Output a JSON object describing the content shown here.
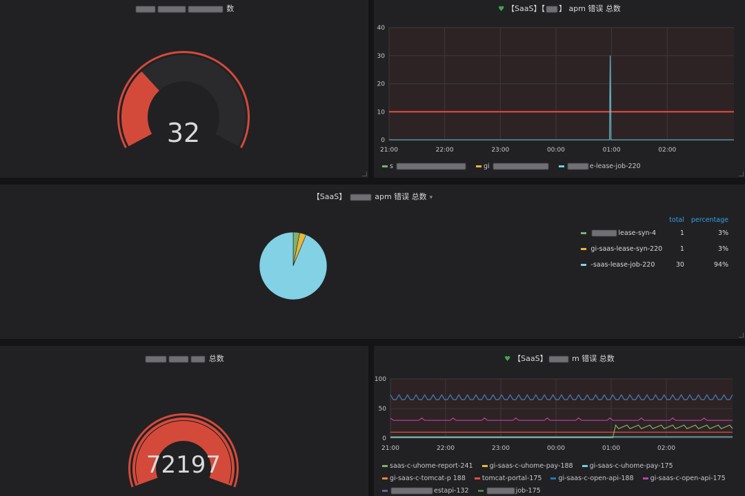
{
  "colors": {
    "gauge_red": "#d44a3a",
    "gauge_track": "#2a2a2d",
    "grid": "#3a3a3e",
    "threshold": "#e24d42",
    "series_cyan": "#6ed0e0",
    "series_green": "#7eb26d",
    "series_yellow": "#eab839",
    "series_blue": "#447ebc",
    "series_purple": "#ba43a9",
    "series_orange": "#ef843c",
    "pie_blue": "#82d1e5"
  },
  "panels": {
    "gauge_top": {
      "title_suffix": "数",
      "value": "32"
    },
    "graph_top": {
      "title_prefix": "【SaaS】【",
      "title_suffix": "apm 错误 总数",
      "legend": [
        {
          "name": "s",
          "color": "#7eb26d"
        },
        {
          "name": "gi",
          "color": "#eab839"
        },
        {
          "name": "e-lease-job-220",
          "color": "#6ed0e0"
        }
      ]
    },
    "pie": {
      "title_prefix": "【SaaS】",
      "title_suffix": "apm 错误 总数",
      "header_total": "total",
      "header_percentage": "percentage",
      "rows": [
        {
          "name": "lease-syn-4",
          "total": "1",
          "percentage": "3%",
          "color": "#7eb26d"
        },
        {
          "name": "gi-saas-lease-syn-220",
          "total": "1",
          "percentage": "3%",
          "color": "#eab839"
        },
        {
          "name": "-saas-lease-job-220",
          "total": "30",
          "percentage": "94%",
          "color": "#82d1e5"
        }
      ]
    },
    "gauge_bottom": {
      "title_suffix": "总数",
      "value": "72197"
    },
    "graph_bottom": {
      "title_prefix": "【SaaS】",
      "title_suffix": "m 错误 总数",
      "legend": [
        {
          "name": "saas-c-uhome-report-241",
          "color": "#7eb26d"
        },
        {
          "name": "gi-saas-c-uhome-pay-188",
          "color": "#eab839"
        },
        {
          "name": "gi-saas-c-uhome-pay-175",
          "color": "#6ed0e0"
        },
        {
          "name": "gi-saas-c-tomcat-p 188",
          "color": "#ef843c"
        },
        {
          "name": "tomcat-portal-175",
          "color": "#e24d42"
        },
        {
          "name": "gi-saas-c-open-api-188",
          "color": "#1f78c1"
        },
        {
          "name": "gi-saas-c-open-api-175",
          "color": "#ba43a9"
        },
        {
          "name": "estapi-132",
          "color": "#705da0"
        },
        {
          "name": "job-175",
          "color": "#508642"
        }
      ]
    }
  },
  "chart_data": [
    {
      "type": "gauge",
      "value": 32,
      "max": 100
    },
    {
      "type": "line",
      "x_ticks": [
        "21:00",
        "22:00",
        "23:00",
        "00:00",
        "01:00",
        "02:00"
      ],
      "ylim": [
        0,
        40
      ],
      "y_ticks": [
        "0",
        "10",
        "20",
        "30",
        "40"
      ],
      "threshold": 10,
      "series": [
        {
          "name": "e-lease-job-220",
          "spike_at": "01:00",
          "spike_value": 30,
          "baseline": 0
        }
      ]
    },
    {
      "type": "pie",
      "labels": [
        "lease-syn-4",
        "gi-saas-lease-syn-220",
        "-saas-lease-job-220"
      ],
      "values": [
        1,
        1,
        30
      ],
      "percentages": [
        3,
        3,
        94
      ]
    },
    {
      "type": "gauge",
      "value": 72197,
      "fill_fraction": 1
    },
    {
      "type": "line",
      "x_ticks": [
        "21:00",
        "22:00",
        "23:00",
        "00:00",
        "01:00",
        "02:00"
      ],
      "ylim": [
        0,
        100
      ],
      "y_ticks": [
        "0",
        "50",
        "100"
      ],
      "series": [
        {
          "name": "gi-saas-c-uhome-pay-175",
          "level": 65
        },
        {
          "name": "gi-saas-c-open-api-175",
          "level": 30
        },
        {
          "name": "tomcat-portal-175",
          "level": 10
        },
        {
          "name": "saas-c-uhome-report-241",
          "level": 20
        },
        {
          "name": "gi-saas-c-open-api-188",
          "level": 2
        }
      ]
    }
  ]
}
